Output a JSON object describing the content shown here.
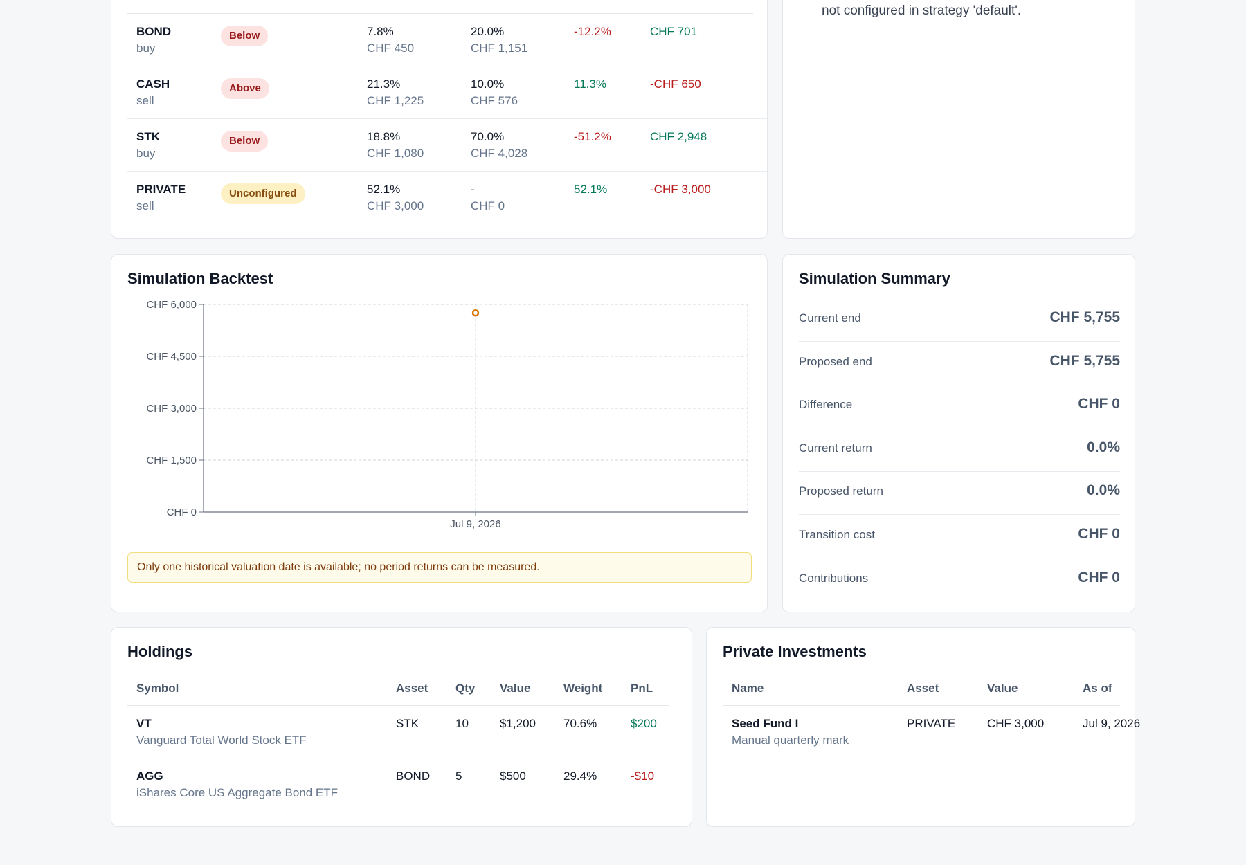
{
  "rebalance": {
    "rows": [
      {
        "asset": "BOND",
        "action": "buy",
        "band": "Below",
        "band_tone": "red",
        "current_pct": "7.8%",
        "current_value": "CHF 450",
        "target_pct": "20.0%",
        "target_value": "CHF 1,151",
        "drift": "-12.2%",
        "drift_tone": "neg",
        "delta": "CHF 701",
        "delta_tone": "pos"
      },
      {
        "asset": "CASH",
        "action": "sell",
        "band": "Above",
        "band_tone": "red",
        "current_pct": "21.3%",
        "current_value": "CHF 1,225",
        "target_pct": "10.0%",
        "target_value": "CHF 576",
        "drift": "11.3%",
        "drift_tone": "pos",
        "delta": "-CHF 650",
        "delta_tone": "neg"
      },
      {
        "asset": "STK",
        "action": "buy",
        "band": "Below",
        "band_tone": "red",
        "current_pct": "18.8%",
        "current_value": "CHF 1,080",
        "target_pct": "70.0%",
        "target_value": "CHF 4,028",
        "drift": "-51.2%",
        "drift_tone": "neg",
        "delta": "CHF 2,948",
        "delta_tone": "pos"
      },
      {
        "asset": "PRIVATE",
        "action": "sell",
        "band": "Unconfigured",
        "band_tone": "yellow",
        "current_pct": "52.1%",
        "current_value": "CHF 3,000",
        "target_pct": "-",
        "target_value": "CHF 0",
        "drift": "52.1%",
        "drift_tone": "pos",
        "delta": "-CHF 3,000",
        "delta_tone": "neg"
      }
    ]
  },
  "warnings": {
    "text": "not configured in strategy 'default'."
  },
  "backtest": {
    "title": "Simulation Backtest",
    "alert": "Only one historical valuation date is available; no period returns can be measured."
  },
  "chart_data": {
    "type": "line",
    "title": "",
    "xlabel": "",
    "ylabel": "",
    "x_ticks": [
      "Jul 9, 2026"
    ],
    "y_ticks": [
      "CHF 0",
      "CHF 1,500",
      "CHF 3,000",
      "CHF 4,500",
      "CHF 6,000"
    ],
    "ylim": [
      0,
      6000
    ],
    "grid": true,
    "series": [
      {
        "x": [
          "Jul 9, 2026"
        ],
        "values": [
          5755
        ],
        "color": "#d97706"
      }
    ]
  },
  "summary": {
    "title": "Simulation Summary",
    "rows": [
      {
        "label": "Current end",
        "value": "CHF 5,755"
      },
      {
        "label": "Proposed end",
        "value": "CHF 5,755"
      },
      {
        "label": "Difference",
        "value": "CHF 0"
      },
      {
        "label": "Current return",
        "value": "0.0%"
      },
      {
        "label": "Proposed return",
        "value": "0.0%"
      },
      {
        "label": "Transition cost",
        "value": "CHF 0"
      },
      {
        "label": "Contributions",
        "value": "CHF 0"
      }
    ]
  },
  "holdings": {
    "title": "Holdings",
    "columns": {
      "symbol": "Symbol",
      "asset": "Asset",
      "qty": "Qty",
      "value": "Value",
      "weight": "Weight",
      "pnl": "PnL"
    },
    "rows": [
      {
        "symbol": "VT",
        "name": "Vanguard Total World Stock ETF",
        "asset": "STK",
        "qty": "10",
        "value": "$1,200",
        "weight": "70.6%",
        "pnl": "$200",
        "pnl_tone": "pos"
      },
      {
        "symbol": "AGG",
        "name": "iShares Core US Aggregate Bond ETF",
        "asset": "BOND",
        "qty": "5",
        "value": "$500",
        "weight": "29.4%",
        "pnl": "-$10",
        "pnl_tone": "neg"
      }
    ]
  },
  "private": {
    "title": "Private Investments",
    "columns": {
      "name": "Name",
      "asset": "Asset",
      "value": "Value",
      "as_of": "As of"
    },
    "rows": [
      {
        "name": "Seed Fund I",
        "note": "Manual quarterly mark",
        "asset": "PRIVATE",
        "value": "CHF 3,000",
        "as_of": "Jul 9, 2026"
      }
    ]
  },
  "colors": {
    "negative": "#b91c1c",
    "positive": "#047857",
    "accent": "#d97706"
  }
}
